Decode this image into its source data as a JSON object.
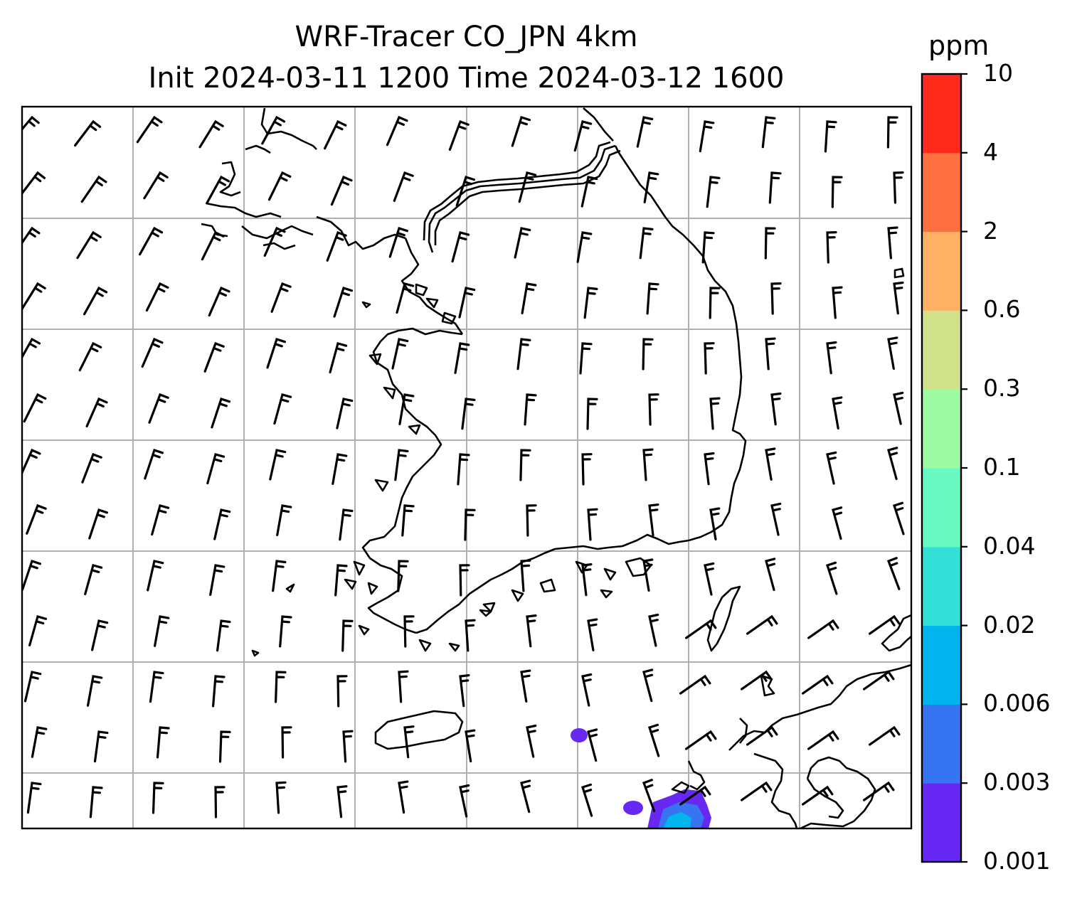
{
  "title": {
    "line1": "WRF-Tracer CO_JPN 4km",
    "line2": "Init 2024-03-11 1200 Time 2024-03-12 1600"
  },
  "colorbar": {
    "unit": "ppm",
    "ticks": [
      "0.001",
      "0.003",
      "0.006",
      "0.02",
      "0.04",
      "0.1",
      "0.3",
      "0.6",
      "2",
      "4",
      "10"
    ],
    "colors": [
      "#6628f2",
      "#3674f2",
      "#02b4ee",
      "#32e0d8",
      "#68fac2",
      "#9dfca3",
      "#cfe289",
      "#ffb064",
      "#ff7041",
      "#ff2a1c"
    ]
  },
  "map": {
    "gridlines": true,
    "features": [
      "coastline-korea",
      "coastline-china",
      "coastline-japan",
      "jeju-island",
      "tsushima-island"
    ],
    "wind_barbs": true,
    "tracer_plume_color": "#6628f2",
    "tracer_core_color": "#3674f2",
    "tracer_center_color": "#02b4ee"
  }
}
